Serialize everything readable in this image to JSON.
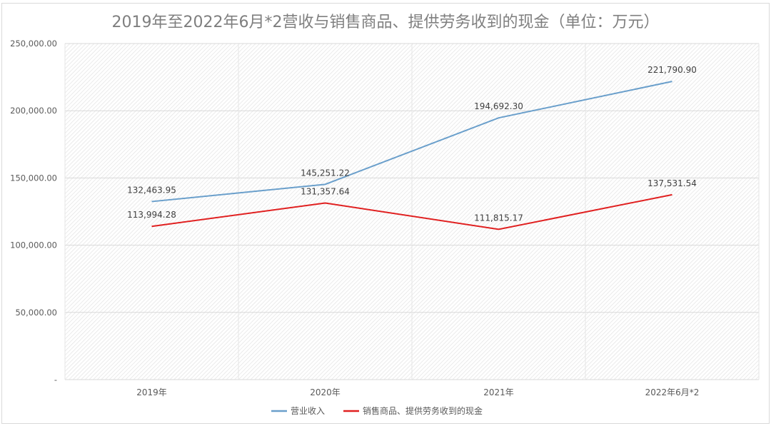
{
  "chart_data": {
    "type": "line",
    "title": "2019年至2022年6月*2营收与销售商品、提供劳务收到的现金（单位：万元）",
    "categories": [
      "2019年",
      "2020年",
      "2021年",
      "2022年6月*2"
    ],
    "series": [
      {
        "name": "营业收入",
        "color": "#6a9fcb",
        "values": [
          132463.95,
          145251.22,
          194692.3,
          221790.9
        ],
        "labels": [
          "132,463.95",
          "145,251.22",
          "194,692.30",
          "221,790.90"
        ]
      },
      {
        "name": "销售商品、提供劳务收到的现金",
        "color": "#e02020",
        "values": [
          113994.28,
          131357.64,
          111815.17,
          137531.54
        ],
        "labels": [
          "113,994.28",
          "131,357.64",
          "111,815.17",
          "137,531.54"
        ]
      }
    ],
    "ylim": [
      0,
      250000
    ],
    "yticks": [
      0,
      50000,
      100000,
      150000,
      200000,
      250000
    ],
    "ytick_labels": [
      "-",
      "50,000.00",
      "100,000.00",
      "150,000.00",
      "200,000.00",
      "250,000.00"
    ],
    "grid": true,
    "legend": "bottom"
  }
}
